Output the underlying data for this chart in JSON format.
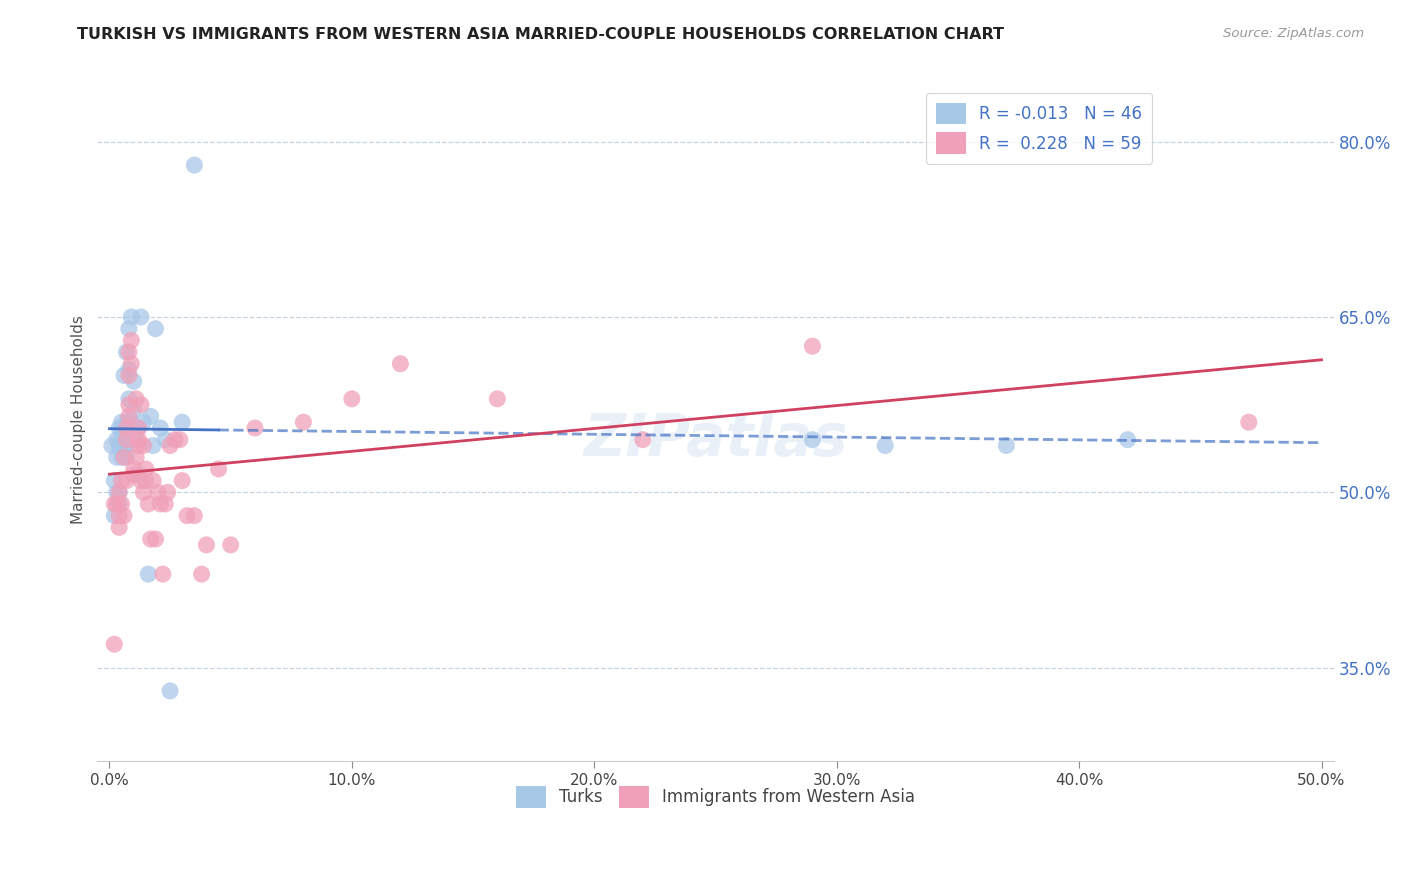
{
  "title": "TURKISH VS IMMIGRANTS FROM WESTERN ASIA MARRIED-COUPLE HOUSEHOLDS CORRELATION CHART",
  "source": "Source: ZipAtlas.com",
  "ylabel": "Married-couple Households",
  "y_ticks": [
    0.35,
    0.5,
    0.65,
    0.8
  ],
  "y_tick_labels": [
    "35.0%",
    "50.0%",
    "65.0%",
    "80.0%"
  ],
  "x_ticks": [
    0.0,
    0.1,
    0.2,
    0.3,
    0.4,
    0.5
  ],
  "x_tick_labels": [
    "0.0%",
    "10.0%",
    "20.0%",
    "30.0%",
    "40.0%",
    "50.0%"
  ],
  "xlim": [
    -0.005,
    0.505
  ],
  "ylim": [
    0.27,
    0.855
  ],
  "turks_R": "-0.013",
  "turks_N": "46",
  "immigrants_R": "0.228",
  "immigrants_N": "59",
  "turks_color": "#a8c8e8",
  "immigrants_color": "#f0a0b8",
  "turks_line_color": "#4472c4",
  "immigrants_line_color": "#d04060",
  "background_color": "#ffffff",
  "grid_color": "#b8c8d8",
  "turks_x": [
    0.001,
    0.002,
    0.002,
    0.003,
    0.003,
    0.003,
    0.004,
    0.004,
    0.004,
    0.004,
    0.005,
    0.005,
    0.005,
    0.005,
    0.006,
    0.006,
    0.006,
    0.007,
    0.007,
    0.007,
    0.007,
    0.008,
    0.008,
    0.008,
    0.009,
    0.009,
    0.01,
    0.01,
    0.011,
    0.012,
    0.012,
    0.013,
    0.014,
    0.016,
    0.017,
    0.018,
    0.019,
    0.021,
    0.023,
    0.025,
    0.03,
    0.035,
    0.29,
    0.32,
    0.37,
    0.42
  ],
  "turks_y": [
    0.54,
    0.51,
    0.48,
    0.545,
    0.53,
    0.5,
    0.555,
    0.5,
    0.49,
    0.54,
    0.545,
    0.555,
    0.53,
    0.56,
    0.6,
    0.555,
    0.535,
    0.56,
    0.54,
    0.53,
    0.62,
    0.64,
    0.605,
    0.58,
    0.65,
    0.56,
    0.595,
    0.57,
    0.545,
    0.555,
    0.515,
    0.65,
    0.56,
    0.43,
    0.565,
    0.54,
    0.64,
    0.555,
    0.545,
    0.33,
    0.56,
    0.78,
    0.545,
    0.54,
    0.54,
    0.545
  ],
  "immigrants_x": [
    0.002,
    0.002,
    0.003,
    0.004,
    0.004,
    0.004,
    0.005,
    0.005,
    0.006,
    0.006,
    0.007,
    0.007,
    0.007,
    0.008,
    0.008,
    0.008,
    0.008,
    0.009,
    0.009,
    0.01,
    0.01,
    0.011,
    0.011,
    0.012,
    0.012,
    0.012,
    0.013,
    0.013,
    0.014,
    0.014,
    0.015,
    0.015,
    0.016,
    0.017,
    0.018,
    0.019,
    0.02,
    0.021,
    0.022,
    0.023,
    0.024,
    0.025,
    0.027,
    0.029,
    0.03,
    0.032,
    0.035,
    0.038,
    0.04,
    0.045,
    0.05,
    0.06,
    0.08,
    0.1,
    0.12,
    0.16,
    0.22,
    0.29,
    0.47
  ],
  "immigrants_y": [
    0.49,
    0.37,
    0.49,
    0.5,
    0.47,
    0.48,
    0.49,
    0.51,
    0.53,
    0.48,
    0.51,
    0.545,
    0.555,
    0.575,
    0.565,
    0.62,
    0.6,
    0.61,
    0.63,
    0.52,
    0.515,
    0.53,
    0.58,
    0.54,
    0.555,
    0.545,
    0.51,
    0.575,
    0.54,
    0.5,
    0.52,
    0.51,
    0.49,
    0.46,
    0.51,
    0.46,
    0.5,
    0.49,
    0.43,
    0.49,
    0.5,
    0.54,
    0.545,
    0.545,
    0.51,
    0.48,
    0.48,
    0.43,
    0.455,
    0.52,
    0.455,
    0.555,
    0.56,
    0.58,
    0.61,
    0.58,
    0.545,
    0.625,
    0.56
  ]
}
